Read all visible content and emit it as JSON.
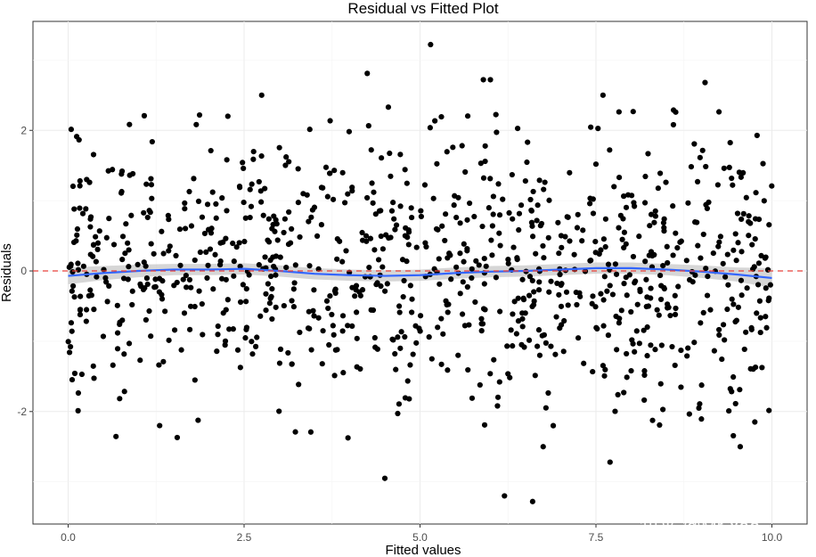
{
  "chart_data": {
    "type": "scatter",
    "title": "Residual vs Fitted Plot",
    "xlabel": "Fitted values",
    "ylabel": "Residuals",
    "xlim": [
      -0.5,
      10.5
    ],
    "ylim": [
      -3.6,
      3.55
    ],
    "x_ticks": [
      0,
      2.5,
      5,
      7.5,
      10
    ],
    "x_tick_labels": [
      "0.0",
      "2.5",
      "5.0",
      "7.5",
      "10.0"
    ],
    "y_ticks": [
      -2,
      0,
      2
    ],
    "y_tick_labels": [
      "-2",
      "0",
      "2"
    ],
    "grid": true,
    "reference_line": {
      "y": 0,
      "style": "dashed",
      "color": "#e8413b"
    },
    "smooth_line": {
      "color": "#3366ff",
      "band_color": "#c8c8c8",
      "x": [
        0,
        0.5,
        1,
        1.5,
        2,
        2.5,
        3,
        3.5,
        4,
        4.5,
        5,
        5.5,
        6,
        6.5,
        7,
        7.5,
        8,
        8.5,
        9,
        9.5,
        10
      ],
      "y": [
        -0.07,
        -0.03,
        0.0,
        0.02,
        0.02,
        0.03,
        0.0,
        -0.04,
        -0.06,
        -0.07,
        -0.06,
        -0.03,
        -0.01,
        0.0,
        0.02,
        0.04,
        0.04,
        0.02,
        -0.01,
        -0.05,
        -0.1
      ],
      "band_halfwidth": [
        0.12,
        0.1,
        0.09,
        0.08,
        0.08,
        0.08,
        0.08,
        0.08,
        0.08,
        0.08,
        0.08,
        0.08,
        0.08,
        0.08,
        0.08,
        0.08,
        0.08,
        0.08,
        0.09,
        0.1,
        0.14
      ]
    },
    "points": {
      "color": "#000000",
      "count": 1000,
      "distribution": "approximately normal, mean 0, sd about 1, x uniform 0 to 10",
      "notable": [
        {
          "x": 5.15,
          "y": 3.22
        },
        {
          "x": 4.25,
          "y": 2.81
        },
        {
          "x": 5.9,
          "y": 2.72
        },
        {
          "x": 6.0,
          "y": 2.72
        },
        {
          "x": 7.6,
          "y": 2.5
        },
        {
          "x": 9.05,
          "y": 2.68
        },
        {
          "x": 2.75,
          "y": 2.5
        },
        {
          "x": 4.55,
          "y": 2.33
        },
        {
          "x": 4.5,
          "y": -2.95
        },
        {
          "x": 6.2,
          "y": -3.2
        },
        {
          "x": 6.6,
          "y": -3.28
        },
        {
          "x": 7.7,
          "y": -2.72
        },
        {
          "x": 9.55,
          "y": -2.5
        },
        {
          "x": 1.3,
          "y": -2.2
        },
        {
          "x": 1.55,
          "y": -2.37
        },
        {
          "x": 6.75,
          "y": -2.5
        }
      ]
    }
  },
  "watermark": "知乎 @Mr Yao"
}
